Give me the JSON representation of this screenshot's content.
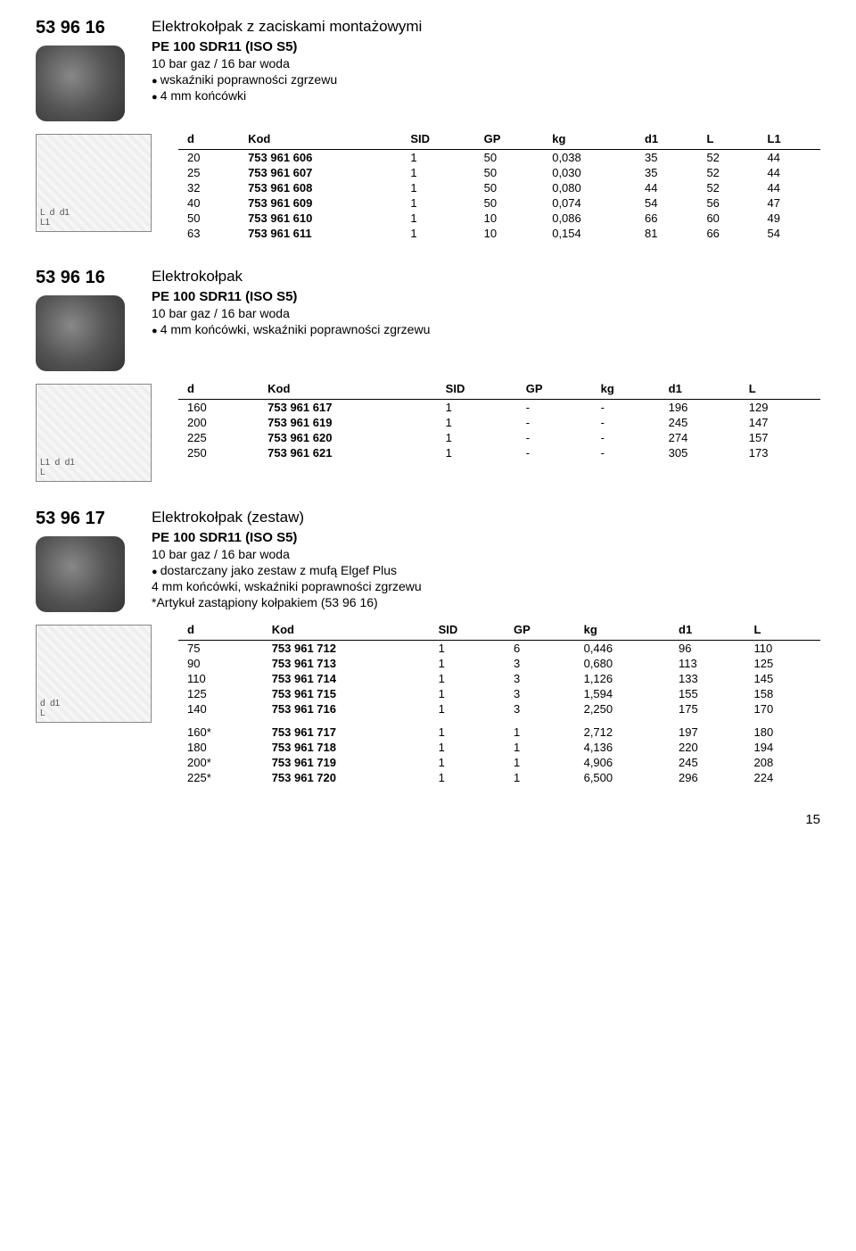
{
  "sections": [
    {
      "code": "53 96 16",
      "title": "Elektrokołpak z zaciskami montażowymi",
      "subtitle": "PE 100 SDR11 (ISO S5)",
      "lines": [
        {
          "text": "10 bar gaz / 16 bar woda",
          "bullet": false
        },
        {
          "text": "wskaźniki poprawności zgrzewu",
          "bullet": true
        },
        {
          "text": "4 mm końcówki",
          "bullet": true
        }
      ],
      "columns": [
        "d",
        "Kod",
        "SID",
        "GP",
        "kg",
        "d1",
        "L",
        "L1"
      ],
      "diagram_labels": "L  d  d1\nL1",
      "rows": [
        [
          "20",
          "753 961 606",
          "1",
          "50",
          "0,038",
          "35",
          "52",
          "44"
        ],
        [
          "25",
          "753 961 607",
          "1",
          "50",
          "0,030",
          "35",
          "52",
          "44"
        ],
        [
          "32",
          "753 961 608",
          "1",
          "50",
          "0,080",
          "44",
          "52",
          "44"
        ],
        [
          "40",
          "753 961 609",
          "1",
          "50",
          "0,074",
          "54",
          "56",
          "47"
        ],
        [
          "50",
          "753 961 610",
          "1",
          "10",
          "0,086",
          "66",
          "60",
          "49"
        ],
        [
          "63",
          "753 961 611",
          "1",
          "10",
          "0,154",
          "81",
          "66",
          "54"
        ]
      ],
      "gap_before_row": -1
    },
    {
      "code": "53 96 16",
      "title": "Elektrokołpak",
      "subtitle": "PE 100 SDR11 (ISO S5)",
      "lines": [
        {
          "text": "10 bar gaz / 16 bar woda",
          "bullet": false
        },
        {
          "text": "4 mm końcówki, wskaźniki poprawności zgrzewu",
          "bullet": true
        }
      ],
      "columns": [
        "d",
        "Kod",
        "SID",
        "GP",
        "kg",
        "d1",
        "L"
      ],
      "diagram_labels": "L1  d  d1\nL",
      "rows": [
        [
          "160",
          "753 961 617",
          "1",
          "-",
          "-",
          "196",
          "129"
        ],
        [
          "200",
          "753 961 619",
          "1",
          "-",
          "-",
          "245",
          "147"
        ],
        [
          "225",
          "753 961 620",
          "1",
          "-",
          "-",
          "274",
          "157"
        ],
        [
          "250",
          "753 961 621",
          "1",
          "-",
          "-",
          "305",
          "173"
        ]
      ],
      "gap_before_row": -1
    },
    {
      "code": "53 96 17",
      "title": "Elektrokołpak (zestaw)",
      "subtitle": "PE 100 SDR11 (ISO S5)",
      "lines": [
        {
          "text": "10 bar gaz / 16 bar woda",
          "bullet": false
        },
        {
          "text": "dostarczany jako zestaw z mufą Elgef Plus",
          "bullet": true
        },
        {
          "text": "4 mm końcówki, wskaźniki poprawności zgrzewu",
          "bullet": false
        },
        {
          "text": "*Artykuł zastąpiony kołpakiem (53 96 16)",
          "bullet": false
        }
      ],
      "columns": [
        "d",
        "Kod",
        "SID",
        "GP",
        "kg",
        "d1",
        "L"
      ],
      "diagram_labels": "d  d1\nL",
      "rows": [
        [
          "75",
          "753 961 712",
          "1",
          "6",
          "0,446",
          "96",
          "110"
        ],
        [
          "90",
          "753 961 713",
          "1",
          "3",
          "0,680",
          "113",
          "125"
        ],
        [
          "110",
          "753 961 714",
          "1",
          "3",
          "1,126",
          "133",
          "145"
        ],
        [
          "125",
          "753 961 715",
          "1",
          "3",
          "1,594",
          "155",
          "158"
        ],
        [
          "140",
          "753 961 716",
          "1",
          "3",
          "2,250",
          "175",
          "170"
        ],
        [
          "160*",
          "753 961 717",
          "1",
          "1",
          "2,712",
          "197",
          "180"
        ],
        [
          "180",
          "753 961 718",
          "1",
          "1",
          "4,136",
          "220",
          "194"
        ],
        [
          "200*",
          "753 961 719",
          "1",
          "1",
          "4,906",
          "245",
          "208"
        ],
        [
          "225*",
          "753 961 720",
          "1",
          "1",
          "6,500",
          "296",
          "224"
        ]
      ],
      "gap_before_row": 5
    }
  ],
  "page_number": "15",
  "style": {
    "bold_col_index": 1,
    "font_family": "Arial, Helvetica, sans-serif",
    "text_color": "#000000",
    "background": "#ffffff"
  }
}
